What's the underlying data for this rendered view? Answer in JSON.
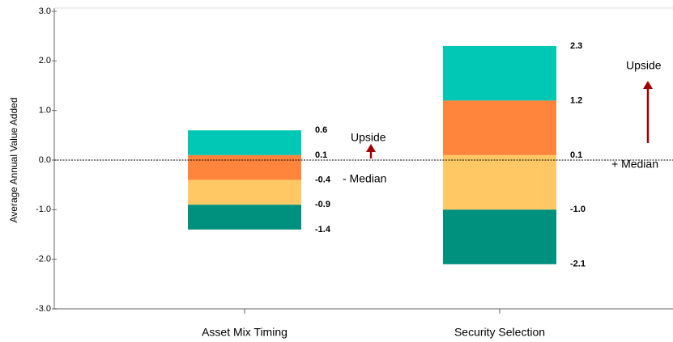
{
  "chart_data": {
    "type": "floating_stack",
    "y_label": "Average Annual Value Added",
    "categories": [
      "Asset Mix Timing",
      "Security Selection"
    ],
    "boundaries": [
      [
        0.6,
        0.1,
        -0.4,
        -0.9,
        -1.4
      ],
      [
        2.3,
        1.2,
        0.1,
        -1.0,
        -2.1
      ]
    ],
    "value_labels": [
      [
        "0.6",
        "0.1",
        "-0.4",
        "-0.9",
        "-1.4"
      ],
      [
        "2.3",
        "1.2",
        "0.1",
        "-1.0",
        "-2.1"
      ]
    ],
    "colors": [
      "#00c8b4",
      "#ff843c",
      "#ffc864",
      "#00907e"
    ],
    "median_line": 0,
    "annotations": [
      "Upside",
      "- Median",
      "Upside",
      "+ Median"
    ],
    "arrow_color": "#a00000",
    "ylim": [
      -3,
      3
    ],
    "yticks": [
      {
        "value": 3,
        "label": "3.0"
      },
      {
        "value": 2,
        "label": "2.0"
      },
      {
        "value": 1,
        "label": "1.0"
      },
      {
        "value": 0,
        "label": "0.0"
      },
      {
        "value": -1,
        "label": "-1.0"
      },
      {
        "value": -2,
        "label": "-2.0"
      },
      {
        "value": -3,
        "label": "-3.0"
      }
    ]
  }
}
